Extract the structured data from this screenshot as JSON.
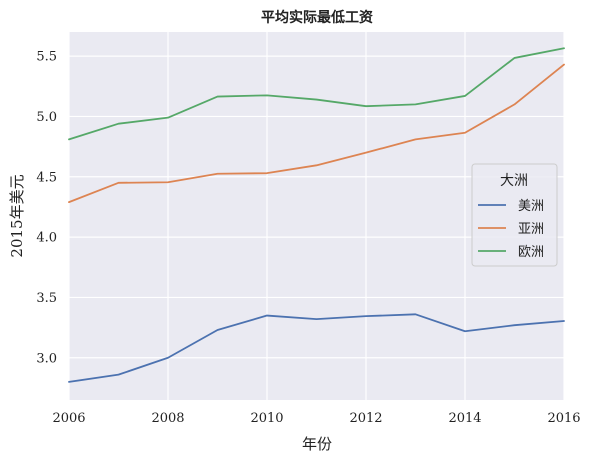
{
  "chart_data": {
    "type": "line",
    "title": "平均实际最低工资",
    "xlabel": "年份",
    "ylabel": "2015年美元",
    "x": [
      2006,
      2007,
      2008,
      2009,
      2010,
      2011,
      2012,
      2013,
      2014,
      2015,
      2016
    ],
    "xlim": [
      2006,
      2016
    ],
    "ylim": [
      2.65,
      5.7
    ],
    "xticks": [
      "2006",
      "2008",
      "2010",
      "2012",
      "2014",
      "2016"
    ],
    "yticks": [
      "3.0",
      "3.5",
      "4.0",
      "4.5",
      "5.0",
      "5.5"
    ],
    "grid": true,
    "legend": {
      "title": "大洲",
      "placement": "center-right"
    },
    "series": [
      {
        "name": "美洲",
        "color": "#4c72b0",
        "values": [
          2.8,
          2.86,
          3.0,
          3.23,
          3.35,
          3.32,
          3.345,
          3.36,
          3.22,
          3.27,
          3.305
        ]
      },
      {
        "name": "亚洲",
        "color": "#dd8452",
        "values": [
          4.29,
          4.45,
          4.455,
          4.525,
          4.53,
          4.595,
          4.7,
          4.81,
          4.865,
          5.1,
          5.43
        ]
      },
      {
        "name": "欧洲",
        "color": "#55a868",
        "values": [
          4.81,
          4.94,
          4.99,
          5.165,
          5.175,
          5.14,
          5.085,
          5.1,
          5.17,
          5.485,
          5.565
        ]
      }
    ]
  }
}
